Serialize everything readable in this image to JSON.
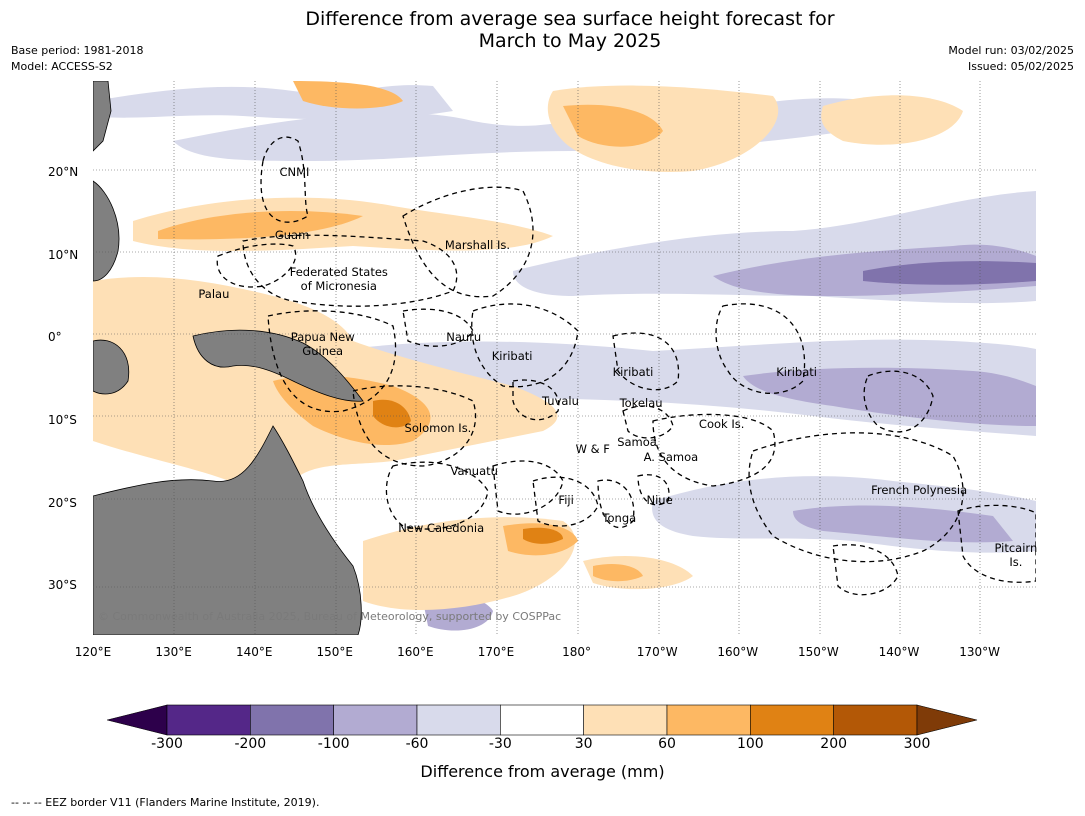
{
  "title_line1": "Difference from average sea surface height forecast for",
  "title_line2": "March to May 2025",
  "meta_left": [
    "Base period: 1981-2018",
    "Model: ACCESS-S2"
  ],
  "meta_right": [
    "Model run: 03/02/2025",
    "Issued: 05/02/2025"
  ],
  "map": {
    "lon_range": [
      120,
      237
    ],
    "lat_range": [
      -36,
      31
    ],
    "lon_ticks": [
      "120°E",
      "130°E",
      "140°E",
      "150°E",
      "160°E",
      "170°E",
      "180°",
      "170°W",
      "160°W",
      "150°W",
      "140°W",
      "130°W"
    ],
    "lat_ticks": [
      "20°N",
      "10°N",
      "0°",
      "10°S",
      "20°S",
      "30°S"
    ],
    "land_color": "#808080",
    "labels": [
      {
        "name": "cnmi",
        "text": "CNMI",
        "lon": 145.0,
        "lat": 20.0
      },
      {
        "name": "guam",
        "text": "Guam",
        "lon": 144.7,
        "lat": 12.4
      },
      {
        "name": "marshall",
        "text": "Marshall Is.",
        "lon": 167.7,
        "lat": 11.2
      },
      {
        "name": "fsm-1",
        "text": "Federated States",
        "lon": 150.5,
        "lat": 7.9
      },
      {
        "name": "fsm-2",
        "text": "of Micronesia",
        "lon": 150.5,
        "lat": 6.2
      },
      {
        "name": "palau",
        "text": "Palau",
        "lon": 135.0,
        "lat": 5.2
      },
      {
        "name": "png-1",
        "text": "Papua New",
        "lon": 148.5,
        "lat": 0.0
      },
      {
        "name": "png-2",
        "text": "Guinea",
        "lon": 148.5,
        "lat": -1.7
      },
      {
        "name": "nauru",
        "text": "Nauru",
        "lon": 166.0,
        "lat": 0.0
      },
      {
        "name": "kiribati-1",
        "text": "Kiribati",
        "lon": 172.0,
        "lat": -2.3
      },
      {
        "name": "kiribati-2",
        "text": "Kiribati",
        "lon": 187.0,
        "lat": -4.2
      },
      {
        "name": "kiribati-3",
        "text": "Kiribati",
        "lon": 207.3,
        "lat": -4.2
      },
      {
        "name": "tuvalu",
        "text": "Tuvalu",
        "lon": 178.0,
        "lat": -7.7
      },
      {
        "name": "tokelau",
        "text": "Tokelau",
        "lon": 188.0,
        "lat": -8.0
      },
      {
        "name": "solomon",
        "text": "Solomon Is.",
        "lon": 162.8,
        "lat": -11.0
      },
      {
        "name": "cook",
        "text": "Cook Is.",
        "lon": 198.0,
        "lat": -10.5
      },
      {
        "name": "samoa",
        "text": "Samoa",
        "lon": 187.5,
        "lat": -12.6
      },
      {
        "name": "wallis",
        "text": "W & F",
        "lon": 182.0,
        "lat": -13.5
      },
      {
        "name": "amsamoa",
        "text": "A. Samoa",
        "lon": 191.7,
        "lat": -14.5
      },
      {
        "name": "vanuatu",
        "text": "Vanuatu",
        "lon": 167.3,
        "lat": -16.2
      },
      {
        "name": "fiji",
        "text": "Fiji",
        "lon": 178.7,
        "lat": -19.7
      },
      {
        "name": "niue",
        "text": "Niue",
        "lon": 190.3,
        "lat": -19.7
      },
      {
        "name": "frpoly",
        "text": "French Polynesia",
        "lon": 222.5,
        "lat": -18.5
      },
      {
        "name": "tonga",
        "text": "Tonga",
        "lon": 185.3,
        "lat": -21.8
      },
      {
        "name": "newcal",
        "text": "New Caledonia",
        "lon": 163.2,
        "lat": -23.0
      },
      {
        "name": "pitcairn-1",
        "text": "Pitcairn",
        "lon": 234.5,
        "lat": -25.5
      },
      {
        "name": "pitcairn-2",
        "text": "Is.",
        "lon": 234.5,
        "lat": -27.2
      }
    ]
  },
  "copyright": "© Commonwealth of Australia 2025, Bureau of Meteorology, supported by COSPPac",
  "colorbar": {
    "ticks": [
      "-300",
      "-200",
      "-100",
      "-60",
      "-30",
      "30",
      "60",
      "100",
      "200",
      "300"
    ],
    "under_color": "#2d004b",
    "over_color": "#7f3b08",
    "colors": [
      "#542788",
      "#8073ac",
      "#b2abd2",
      "#d8daeb",
      "#ffffff",
      "#fee0b6",
      "#fdb863",
      "#e08214",
      "#b35806"
    ],
    "label": "Difference from average (mm)"
  },
  "eez_note": "--  --  -- EEZ border V11 (Flanders Marine Institute, 2019)."
}
